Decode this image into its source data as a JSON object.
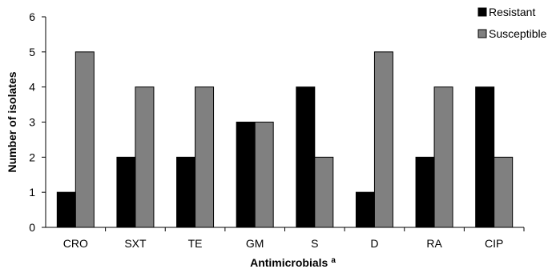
{
  "chart_data": {
    "type": "bar",
    "title": "",
    "xlabel": "Antimicrobials",
    "xlabel_superscript": "a",
    "ylabel": "Number of isolates",
    "ylim": [
      0,
      6
    ],
    "yticks": [
      "0",
      "1",
      "2",
      "3",
      "4",
      "5",
      "6"
    ],
    "categories": [
      "CRO",
      "SXT",
      "TE",
      "GM",
      "S",
      "D",
      "RA",
      "CIP"
    ],
    "series": [
      {
        "name": "Resistant",
        "color": "#000000",
        "values": [
          1,
          2,
          2,
          3,
          4,
          1,
          2,
          4
        ]
      },
      {
        "name": "Susceptible",
        "color": "#808080",
        "values": [
          5,
          4,
          4,
          3,
          2,
          5,
          4,
          2
        ]
      }
    ],
    "grid": false,
    "legend_position": "top-right"
  }
}
